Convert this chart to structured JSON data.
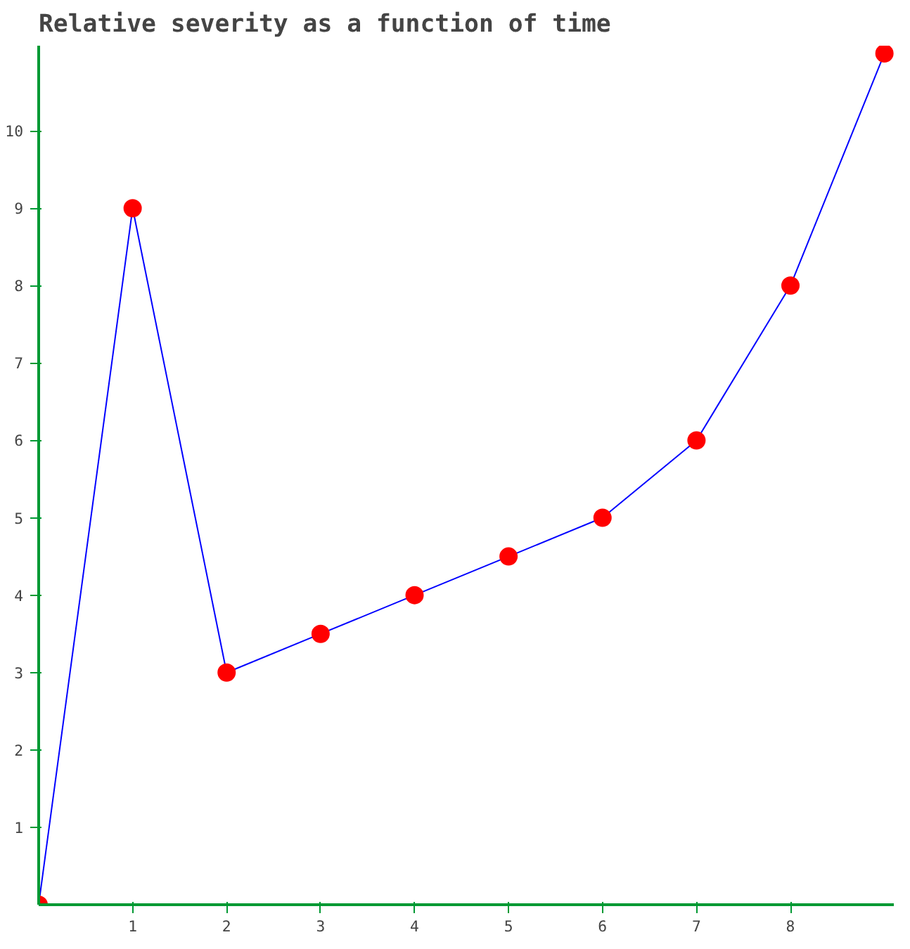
{
  "chart_data": {
    "type": "line",
    "title": "Relative severity as a function of time",
    "x": [
      0,
      1,
      2,
      3,
      4,
      5,
      6,
      7,
      8,
      9
    ],
    "series": [
      {
        "color": "#0000ff",
        "values": [
          0,
          9,
          3,
          3.5,
          4,
          4.5,
          5,
          6,
          8,
          11
        ]
      }
    ],
    "xlim": [
      0,
      9.1
    ],
    "ylim": [
      0,
      11.1
    ],
    "xticks": [
      1,
      2,
      3,
      4,
      5,
      6,
      7,
      8
    ],
    "yticks": [
      1,
      2,
      3,
      4,
      5,
      6,
      7,
      8,
      9,
      10
    ],
    "marker": "circle",
    "grid": false
  }
}
